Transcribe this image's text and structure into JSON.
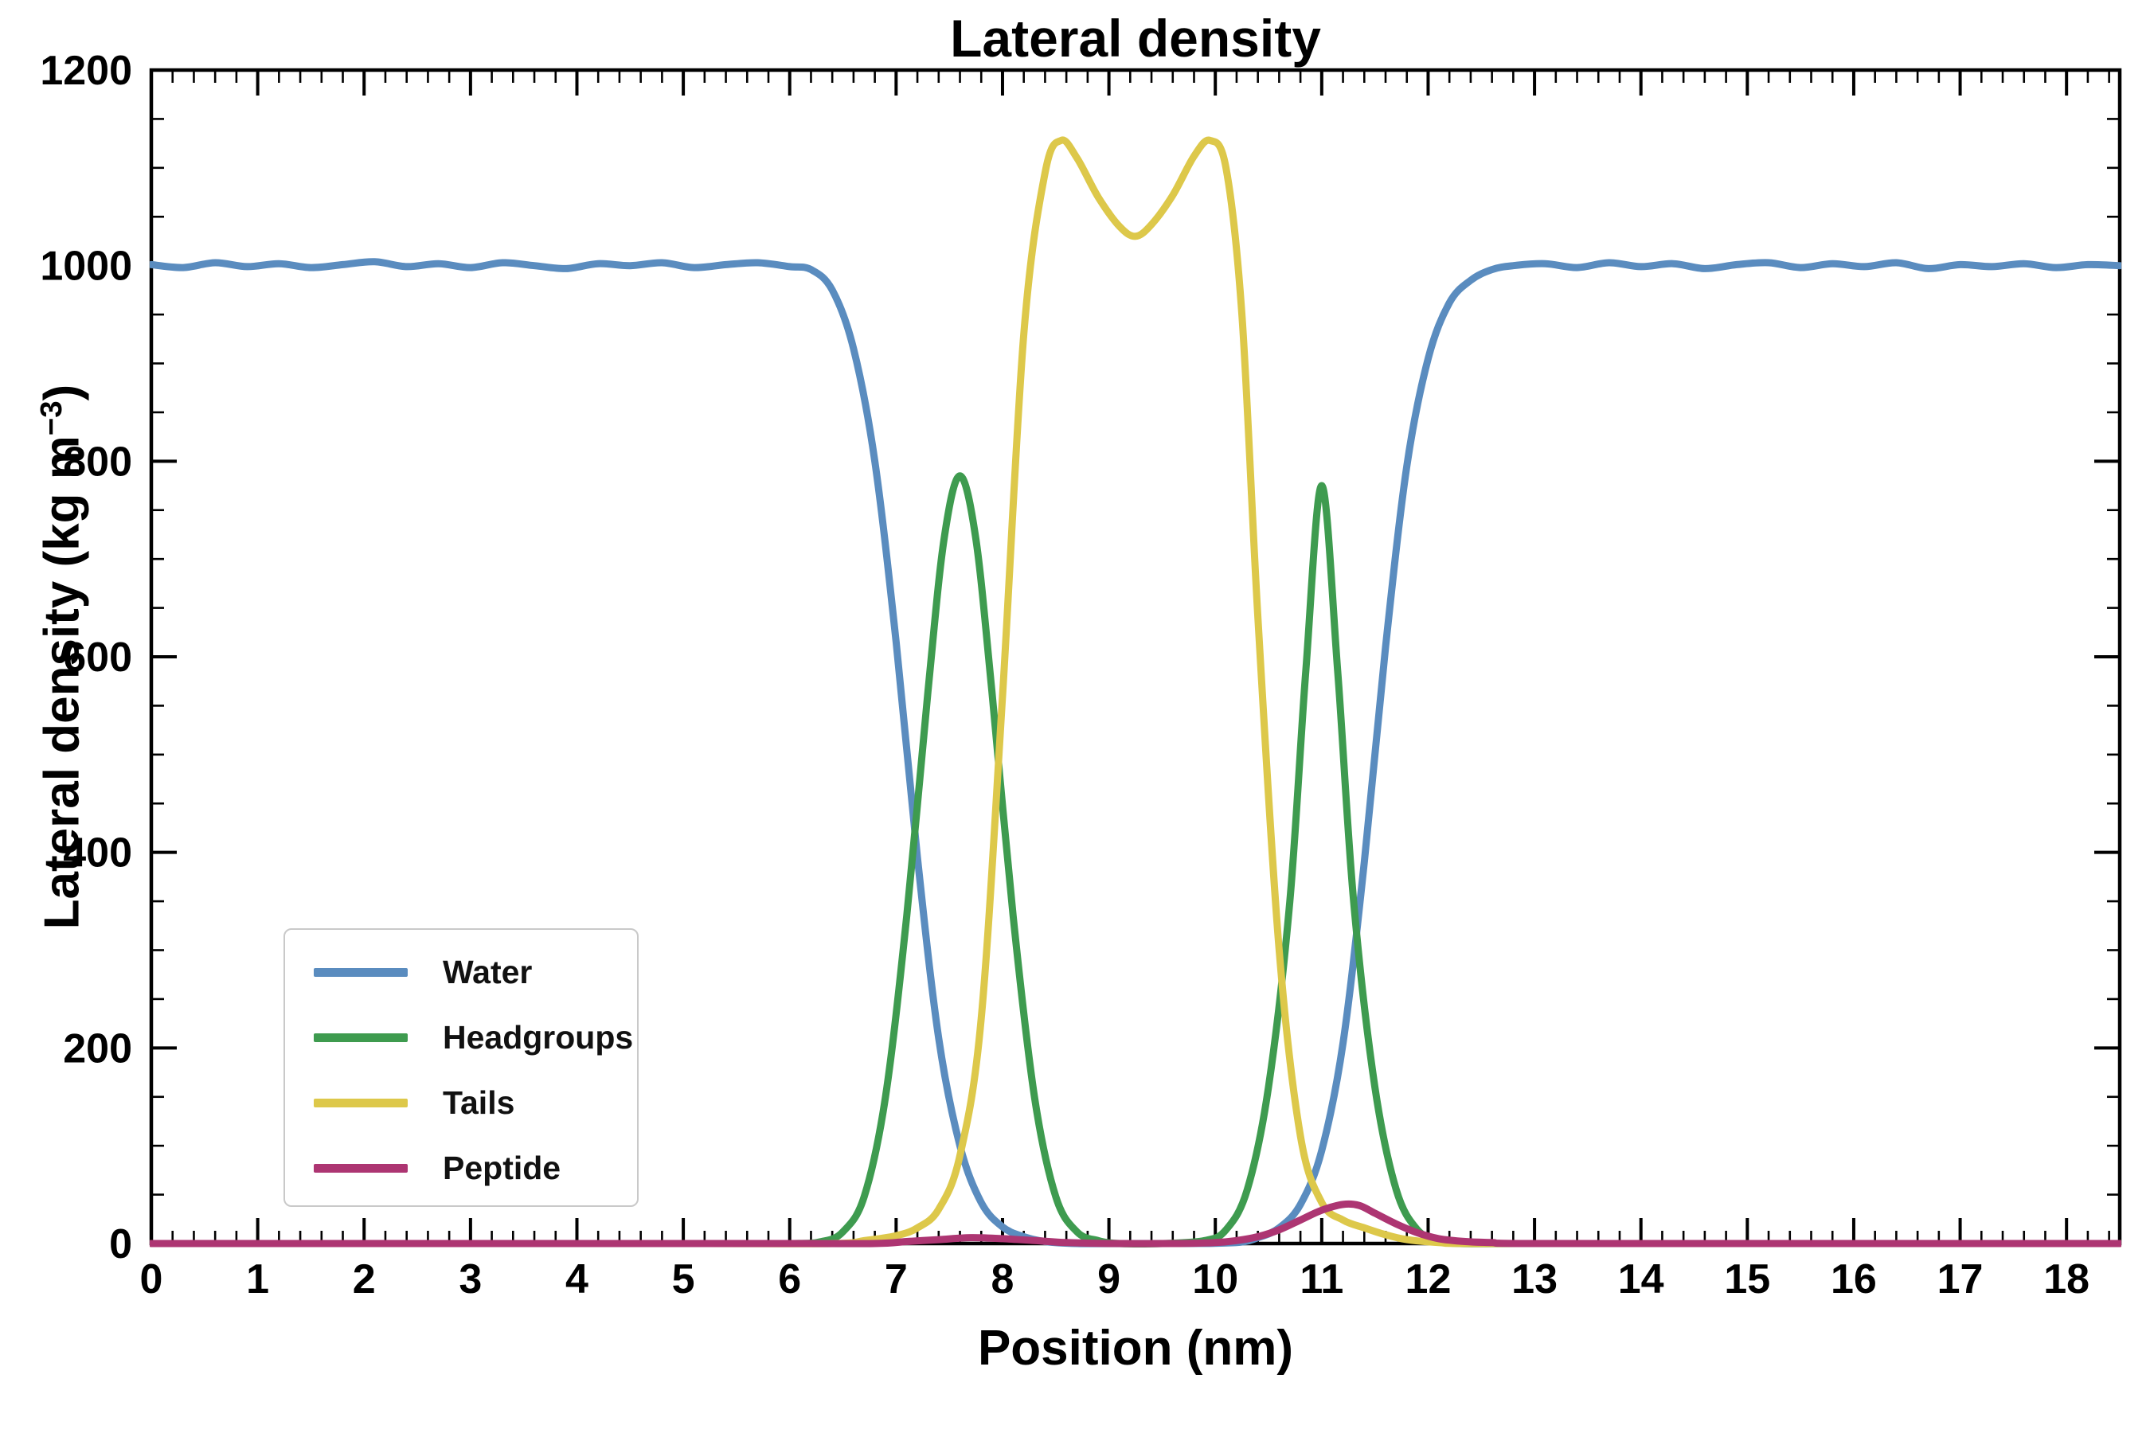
{
  "figure": {
    "title": "Lateral density",
    "xlabel": "Position (nm)",
    "ylabel_prefix": "Lateral density (kg m",
    "ylabel_sup": "−3",
    "ylabel_suffix": ")"
  },
  "chart_data": {
    "type": "line",
    "title": "Lateral density",
    "xlabel": "Position (nm)",
    "ylabel": "Lateral density (kg m⁻³)",
    "xlim": [
      0,
      18.5
    ],
    "ylim": [
      0,
      1200
    ],
    "x_major_ticks": [
      0,
      1,
      2,
      3,
      4,
      5,
      6,
      7,
      8,
      9,
      10,
      11,
      12,
      13,
      14,
      15,
      16,
      17,
      18
    ],
    "x_minor_step": 0.2,
    "y_major_ticks": [
      0,
      200,
      400,
      600,
      800,
      1000,
      1200
    ],
    "y_minor_step": 50,
    "grid": false,
    "legend_position": "lower left",
    "series": [
      {
        "name": "Water",
        "color": "#5a8cbf",
        "points": [
          [
            0,
            1001
          ],
          [
            0.3,
            998
          ],
          [
            0.6,
            1003
          ],
          [
            0.9,
            999
          ],
          [
            1.2,
            1002
          ],
          [
            1.5,
            998
          ],
          [
            1.8,
            1001
          ],
          [
            2.1,
            1004
          ],
          [
            2.4,
            999
          ],
          [
            2.7,
            1002
          ],
          [
            3.0,
            998
          ],
          [
            3.3,
            1003
          ],
          [
            3.6,
            1000
          ],
          [
            3.9,
            997
          ],
          [
            4.2,
            1002
          ],
          [
            4.5,
            1000
          ],
          [
            4.8,
            1003
          ],
          [
            5.1,
            998
          ],
          [
            5.4,
            1001
          ],
          [
            5.7,
            1003
          ],
          [
            6.0,
            999
          ],
          [
            6.2,
            996
          ],
          [
            6.4,
            975
          ],
          [
            6.6,
            915
          ],
          [
            6.8,
            800
          ],
          [
            7.0,
            615
          ],
          [
            7.2,
            395
          ],
          [
            7.4,
            210
          ],
          [
            7.6,
            100
          ],
          [
            7.8,
            42
          ],
          [
            8.0,
            17
          ],
          [
            8.2,
            7
          ],
          [
            8.4,
            2
          ],
          [
            8.7,
            0
          ],
          [
            9.2,
            0
          ],
          [
            9.7,
            0
          ],
          [
            10.2,
            1
          ],
          [
            10.4,
            6
          ],
          [
            10.6,
            16
          ],
          [
            10.8,
            40
          ],
          [
            11.0,
            95
          ],
          [
            11.2,
            205
          ],
          [
            11.4,
            390
          ],
          [
            11.6,
            610
          ],
          [
            11.8,
            795
          ],
          [
            12.0,
            905
          ],
          [
            12.2,
            962
          ],
          [
            12.4,
            985
          ],
          [
            12.6,
            996
          ],
          [
            12.8,
            1000
          ],
          [
            13.1,
            1002
          ],
          [
            13.4,
            998
          ],
          [
            13.7,
            1003
          ],
          [
            14.0,
            999
          ],
          [
            14.3,
            1002
          ],
          [
            14.6,
            997
          ],
          [
            14.9,
            1001
          ],
          [
            15.2,
            1003
          ],
          [
            15.5,
            998
          ],
          [
            15.8,
            1002
          ],
          [
            16.1,
            999
          ],
          [
            16.4,
            1003
          ],
          [
            16.7,
            997
          ],
          [
            17.0,
            1001
          ],
          [
            17.3,
            999
          ],
          [
            17.6,
            1002
          ],
          [
            17.9,
            998
          ],
          [
            18.2,
            1001
          ],
          [
            18.5,
            1000
          ]
        ]
      },
      {
        "name": "Headgroups",
        "color": "#3e9b4f",
        "points": [
          [
            0,
            0
          ],
          [
            2.5,
            0
          ],
          [
            5,
            0
          ],
          [
            6.0,
            0
          ],
          [
            6.3,
            2
          ],
          [
            6.5,
            12
          ],
          [
            6.7,
            48
          ],
          [
            6.9,
            150
          ],
          [
            7.1,
            335
          ],
          [
            7.3,
            565
          ],
          [
            7.45,
            720
          ],
          [
            7.6,
            785
          ],
          [
            7.75,
            720
          ],
          [
            7.9,
            565
          ],
          [
            8.1,
            335
          ],
          [
            8.3,
            150
          ],
          [
            8.5,
            48
          ],
          [
            8.7,
            12
          ],
          [
            8.9,
            3
          ],
          [
            9.1,
            0
          ],
          [
            9.5,
            0
          ],
          [
            9.9,
            3
          ],
          [
            10.1,
            14
          ],
          [
            10.3,
            55
          ],
          [
            10.5,
            160
          ],
          [
            10.7,
            350
          ],
          [
            10.85,
            585
          ],
          [
            11.0,
            775
          ],
          [
            11.15,
            585
          ],
          [
            11.3,
            350
          ],
          [
            11.5,
            160
          ],
          [
            11.7,
            55
          ],
          [
            11.9,
            14
          ],
          [
            12.1,
            3
          ],
          [
            12.3,
            0
          ],
          [
            13,
            0
          ],
          [
            15.5,
            0
          ],
          [
            18.5,
            0
          ]
        ]
      },
      {
        "name": "Tails",
        "color": "#ddc84a",
        "points": [
          [
            0,
            0
          ],
          [
            2.5,
            0
          ],
          [
            5,
            0
          ],
          [
            6.4,
            0
          ],
          [
            6.7,
            3
          ],
          [
            7.0,
            8
          ],
          [
            7.2,
            16
          ],
          [
            7.4,
            35
          ],
          [
            7.6,
            90
          ],
          [
            7.8,
            230
          ],
          [
            8.0,
            560
          ],
          [
            8.2,
            930
          ],
          [
            8.4,
            1095
          ],
          [
            8.55,
            1128
          ],
          [
            8.7,
            1110
          ],
          [
            8.9,
            1070
          ],
          [
            9.1,
            1040
          ],
          [
            9.25,
            1030
          ],
          [
            9.4,
            1042
          ],
          [
            9.6,
            1072
          ],
          [
            9.8,
            1112
          ],
          [
            9.95,
            1128
          ],
          [
            10.1,
            1100
          ],
          [
            10.25,
            950
          ],
          [
            10.4,
            640
          ],
          [
            10.6,
            300
          ],
          [
            10.8,
            110
          ],
          [
            11.0,
            42
          ],
          [
            11.2,
            24
          ],
          [
            11.4,
            16
          ],
          [
            11.6,
            9
          ],
          [
            11.8,
            4
          ],
          [
            12.1,
            1
          ],
          [
            12.5,
            0
          ],
          [
            15,
            0
          ],
          [
            18.5,
            0
          ]
        ]
      },
      {
        "name": "Peptide",
        "color": "#ad3572",
        "points": [
          [
            0,
            0
          ],
          [
            3,
            0
          ],
          [
            6,
            0
          ],
          [
            6.8,
            0
          ],
          [
            7.1,
            2
          ],
          [
            7.4,
            4
          ],
          [
            7.7,
            6
          ],
          [
            8.0,
            5
          ],
          [
            8.3,
            3
          ],
          [
            8.6,
            1
          ],
          [
            9.0,
            0
          ],
          [
            9.6,
            0
          ],
          [
            10.0,
            1
          ],
          [
            10.2,
            3
          ],
          [
            10.4,
            7
          ],
          [
            10.6,
            14
          ],
          [
            10.8,
            24
          ],
          [
            11.0,
            34
          ],
          [
            11.2,
            40
          ],
          [
            11.35,
            39
          ],
          [
            11.5,
            31
          ],
          [
            11.7,
            20
          ],
          [
            11.9,
            11
          ],
          [
            12.1,
            5
          ],
          [
            12.35,
            2
          ],
          [
            12.6,
            1
          ],
          [
            12.9,
            0
          ],
          [
            15,
            0
          ],
          [
            18.5,
            0
          ]
        ]
      }
    ]
  }
}
